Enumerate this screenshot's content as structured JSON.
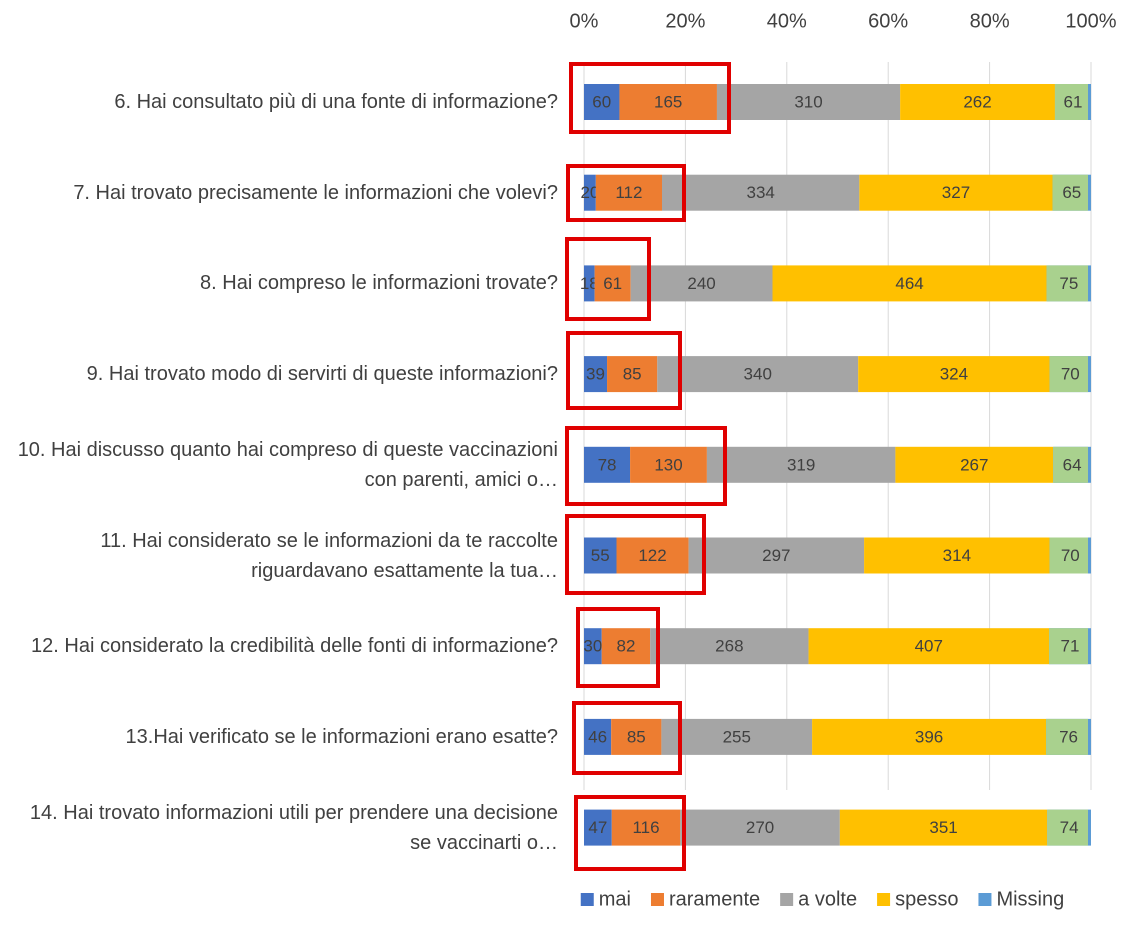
{
  "chart_data": {
    "type": "stacked_bar_100",
    "orientation": "horizontal",
    "categories": [
      "6. Hai consultato più di una fonte di informazione?",
      "7. Hai trovato precisamente le informazioni che volevi?",
      "8. Hai compreso le informazioni trovate?",
      "9. Hai trovato modo di servirti di queste informazioni?",
      "10. Hai discusso quanto hai compreso di queste vaccinazioni con parenti, amici o…",
      "11. Hai considerato se le informazioni da te raccolte riguardavano esattamente la tua…",
      "12. Hai considerato la credibilità delle fonti di informazione?",
      "13.Hai verificato se le informazioni erano esatte?",
      "14. Hai trovato informazioni utili per prendere una decisione se vaccinarti o…"
    ],
    "series": [
      {
        "name": "mai",
        "color": "#4472c4",
        "values": [
          60,
          20,
          18,
          39,
          78,
          55,
          30,
          46,
          47
        ]
      },
      {
        "name": "raramente",
        "color": "#ed7d31",
        "values": [
          165,
          112,
          61,
          85,
          130,
          122,
          82,
          85,
          116
        ]
      },
      {
        "name": "a volte",
        "color": "#a5a5a5",
        "values": [
          310,
          334,
          240,
          340,
          319,
          297,
          268,
          255,
          270
        ]
      },
      {
        "name": "spesso",
        "color": "#ffc000",
        "values": [
          262,
          327,
          464,
          324,
          267,
          314,
          407,
          396,
          351
        ]
      },
      {
        "name": "Missing",
        "color": "#5b9bd5",
        "values": [
          61,
          65,
          75,
          70,
          64,
          70,
          71,
          76,
          74
        ]
      }
    ],
    "xlim": [
      0,
      100
    ],
    "xticks": [
      {
        "value": 0,
        "label": "0%"
      },
      {
        "value": 20,
        "label": "20%"
      },
      {
        "value": 40,
        "label": "40%"
      },
      {
        "value": 60,
        "label": "60%"
      },
      {
        "value": 80,
        "label": "80%"
      },
      {
        "value": 100,
        "label": "100%"
      }
    ],
    "grid": true,
    "legend": "bottom"
  }
}
